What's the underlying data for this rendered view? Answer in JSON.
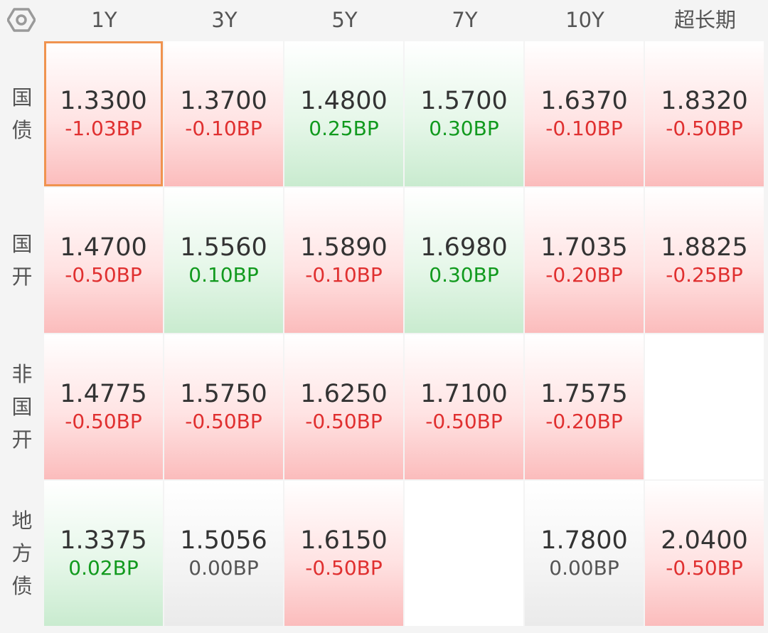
{
  "header": {
    "settings_icon": "hexagon-settings-icon",
    "columns": [
      "1Y",
      "3Y",
      "5Y",
      "7Y",
      "10Y",
      "超长期"
    ]
  },
  "rows": [
    {
      "label": [
        "国",
        "债"
      ],
      "cells": [
        {
          "value": "1.3300",
          "change": "-1.03BP",
          "trend": "down",
          "selected": true
        },
        {
          "value": "1.3700",
          "change": "-0.10BP",
          "trend": "down"
        },
        {
          "value": "1.4800",
          "change": "0.25BP",
          "trend": "up"
        },
        {
          "value": "1.5700",
          "change": "0.30BP",
          "trend": "up"
        },
        {
          "value": "1.6370",
          "change": "-0.10BP",
          "trend": "down"
        },
        {
          "value": "1.8320",
          "change": "-0.50BP",
          "trend": "down"
        }
      ]
    },
    {
      "label": [
        "国",
        "开"
      ],
      "cells": [
        {
          "value": "1.4700",
          "change": "-0.50BP",
          "trend": "down"
        },
        {
          "value": "1.5560",
          "change": "0.10BP",
          "trend": "up"
        },
        {
          "value": "1.5890",
          "change": "-0.10BP",
          "trend": "down"
        },
        {
          "value": "1.6980",
          "change": "0.30BP",
          "trend": "up"
        },
        {
          "value": "1.7035",
          "change": "-0.20BP",
          "trend": "down"
        },
        {
          "value": "1.8825",
          "change": "-0.25BP",
          "trend": "down"
        }
      ]
    },
    {
      "label": [
        "非",
        "国",
        "开"
      ],
      "cells": [
        {
          "value": "1.4775",
          "change": "-0.50BP",
          "trend": "down"
        },
        {
          "value": "1.5750",
          "change": "-0.50BP",
          "trend": "down"
        },
        {
          "value": "1.6250",
          "change": "-0.50BP",
          "trend": "down"
        },
        {
          "value": "1.7100",
          "change": "-0.50BP",
          "trend": "down"
        },
        {
          "value": "1.7575",
          "change": "-0.20BP",
          "trend": "down"
        },
        null
      ]
    },
    {
      "label": [
        "地",
        "方",
        "债"
      ],
      "cells": [
        {
          "value": "1.3375",
          "change": "0.02BP",
          "trend": "up"
        },
        {
          "value": "1.5056",
          "change": "0.00BP",
          "trend": "flat"
        },
        {
          "value": "1.6150",
          "change": "-0.50BP",
          "trend": "down"
        },
        null,
        {
          "value": "1.7800",
          "change": "0.00BP",
          "trend": "flat"
        },
        {
          "value": "2.0400",
          "change": "-0.50BP",
          "trend": "down"
        }
      ]
    }
  ],
  "colors": {
    "down": "#e03030",
    "up": "#119a1e",
    "flat": "#555555",
    "selected_border": "#f0934f"
  }
}
